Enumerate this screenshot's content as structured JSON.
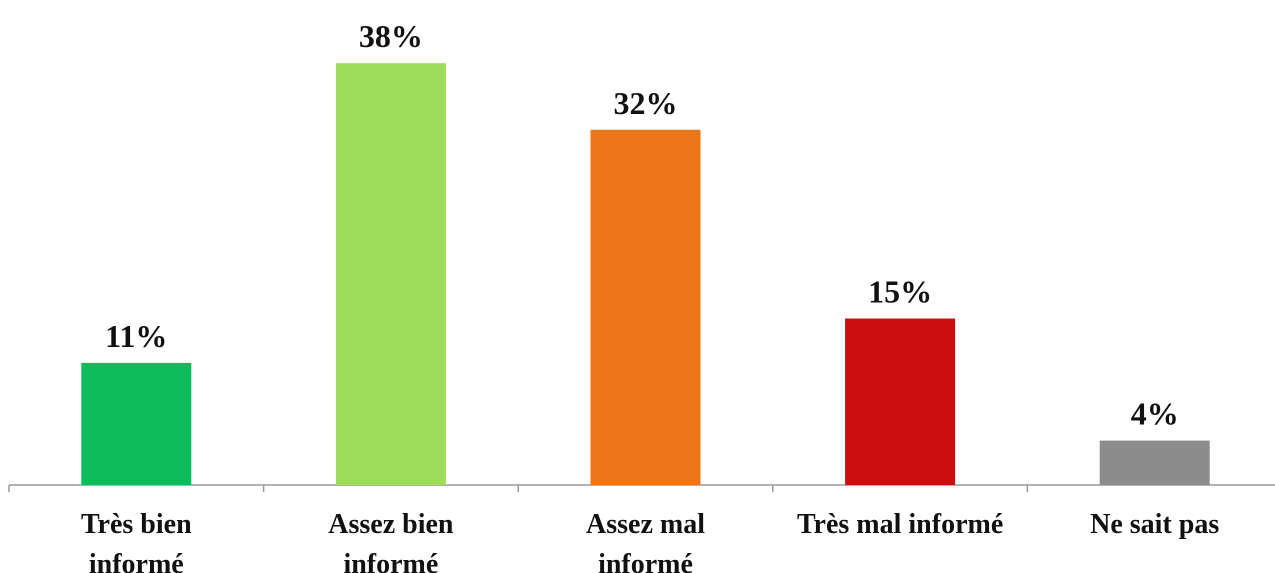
{
  "chart_data": {
    "type": "bar",
    "categories": [
      "Très bien informé",
      "Assez bien informé",
      "Assez mal informé",
      "Très mal informé",
      "Ne sait pas"
    ],
    "values": [
      11,
      38,
      32,
      15,
      4
    ],
    "value_labels": [
      "11%",
      "38%",
      "32%",
      "15%",
      "4%"
    ],
    "colors": [
      "#0dbb5a",
      "#9edd5a",
      "#ee7518",
      "#cc0e0e",
      "#8c8c8c"
    ]
  }
}
